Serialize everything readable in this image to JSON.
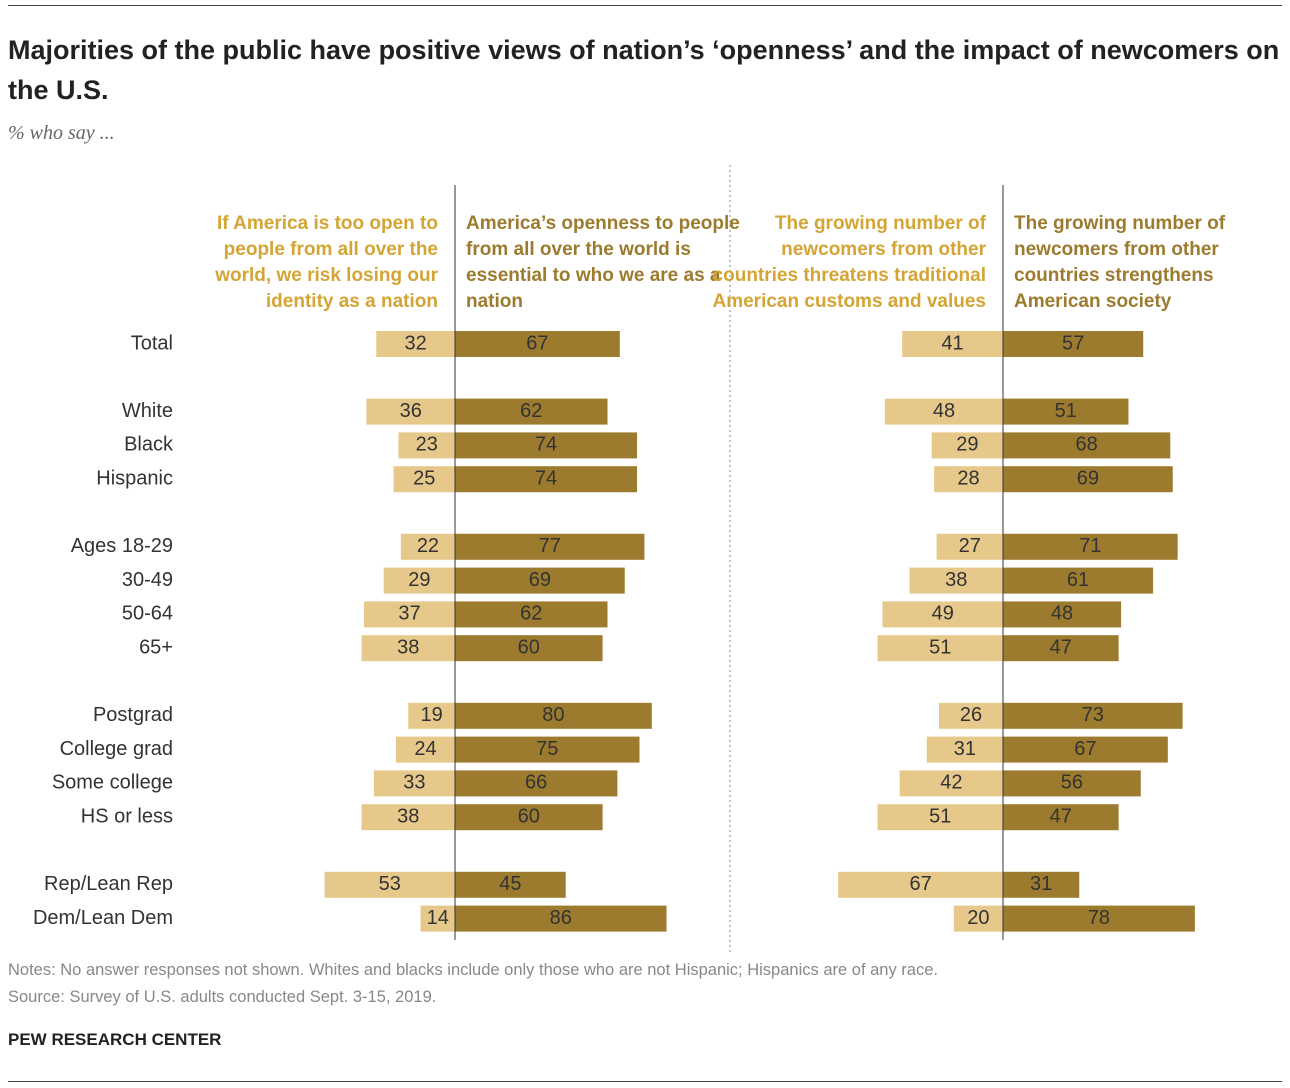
{
  "title": "Majorities of the public have positive views of nation’s ‘openness’ and the impact of newcomers on the U.S.",
  "subtitle": "% who say ...",
  "notes": "Notes: No answer responses not shown. Whites and blacks include only those who are not Hispanic; Hispanics are of any race.",
  "source": "Source: Survey of U.S. adults conducted Sept. 3-15, 2019.",
  "footer": "PEW RESEARCH CENTER",
  "chart_data": [
    {
      "type": "diverging_bar",
      "categories": [
        "Total",
        null,
        "White",
        "Black",
        "Hispanic",
        null,
        "Ages 18-29",
        "30-49",
        "50-64",
        "65+",
        null,
        "Postgrad",
        "College grad",
        "Some college",
        "HS or less",
        null,
        "Rep/Lean Rep",
        "Dem/Lean Dem"
      ],
      "series": [
        {
          "name": "If America is too open to people from all over the world, we risk losing our identity as a nation",
          "color": "#e6c98a",
          "values": [
            32,
            null,
            36,
            23,
            25,
            null,
            22,
            29,
            37,
            38,
            null,
            19,
            24,
            33,
            38,
            null,
            53,
            14
          ]
        },
        {
          "name": "America’s openness to people from all over the world is essential to who we are as a nation",
          "color": "#9c7b2e",
          "values": [
            67,
            null,
            62,
            74,
            74,
            null,
            77,
            69,
            62,
            60,
            null,
            80,
            75,
            66,
            60,
            null,
            45,
            86
          ]
        }
      ]
    },
    {
      "type": "diverging_bar",
      "series": [
        {
          "name": "The growing number of newcomers from other countries threatens traditional American customs and values",
          "color": "#e6c98a",
          "values": [
            41,
            null,
            48,
            29,
            28,
            null,
            27,
            38,
            49,
            51,
            null,
            26,
            31,
            42,
            51,
            null,
            67,
            20
          ]
        },
        {
          "name": "The growing number of newcomers from other countries strengthens American society",
          "color": "#9c7b2e",
          "values": [
            57,
            null,
            51,
            68,
            69,
            null,
            71,
            61,
            48,
            47,
            null,
            73,
            67,
            56,
            47,
            null,
            31,
            78
          ]
        }
      ]
    }
  ]
}
